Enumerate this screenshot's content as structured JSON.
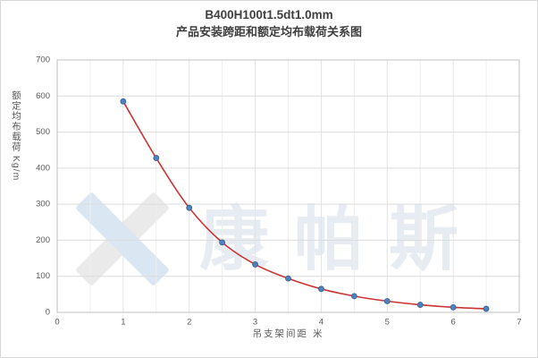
{
  "title": {
    "line1": "B400H100t1.5dt1.0mm",
    "line2": "产品安装跨距和额定均布载荷关系图"
  },
  "chart_data": {
    "type": "line",
    "x": [
      1,
      1.5,
      2,
      2.5,
      3,
      3.5,
      4,
      4.5,
      5,
      5.5,
      6,
      6.5
    ],
    "values": [
      585,
      428,
      290,
      194,
      133,
      94,
      65,
      45,
      31,
      21,
      14,
      10
    ],
    "title": "B400H100t1.5dt1.0mm 产品安装跨距和额定均布载荷关系图",
    "xlabel": "吊支架间距  米",
    "ylabel": "额定均布载荷  Kg/m",
    "xlim": [
      0,
      7
    ],
    "ylim": [
      0,
      700
    ],
    "x_ticks": [
      0,
      1,
      2,
      3,
      4,
      5,
      6,
      7
    ],
    "y_ticks": [
      0,
      100,
      200,
      300,
      400,
      500,
      600,
      700
    ],
    "grid": true,
    "legend_position": "none",
    "line_color": "#cc3333",
    "marker_color": "#4f81bd",
    "marker_edge_color": "#38618f"
  },
  "watermark": {
    "text": "康帕斯"
  }
}
